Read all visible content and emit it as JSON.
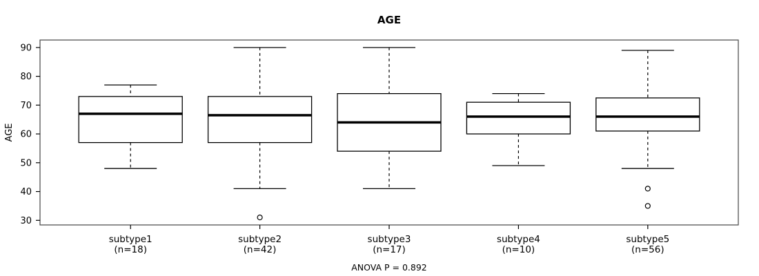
{
  "title": "AGE",
  "y_axis_label": "AGE",
  "footer": "ANOVA P = 0.892",
  "chart_data": {
    "type": "boxplot",
    "title": "AGE",
    "xlabel": "",
    "ylabel": "AGE",
    "annotation": "ANOVA P = 0.892",
    "ylim": [
      28.4,
      92.6
    ],
    "y_ticks": [
      30,
      40,
      50,
      60,
      70,
      80,
      90
    ],
    "grid": false,
    "legend": "none",
    "groups": [
      {
        "label": "subtype1",
        "sublabel": "(n=18)",
        "n": 18,
        "whisker_low": 48,
        "q1": 57,
        "median": 67,
        "q3": 73,
        "whisker_high": 77,
        "outliers": []
      },
      {
        "label": "subtype2",
        "sublabel": "(n=42)",
        "n": 42,
        "whisker_low": 41,
        "q1": 57,
        "median": 66.5,
        "q3": 73,
        "whisker_high": 90,
        "outliers": [
          31
        ]
      },
      {
        "label": "subtype3",
        "sublabel": "(n=17)",
        "n": 17,
        "whisker_low": 41,
        "q1": 54,
        "median": 64,
        "q3": 74,
        "whisker_high": 90,
        "outliers": []
      },
      {
        "label": "subtype4",
        "sublabel": "(n=10)",
        "n": 10,
        "whisker_low": 49,
        "q1": 60,
        "median": 66,
        "q3": 71,
        "whisker_high": 74,
        "outliers": []
      },
      {
        "label": "subtype5",
        "sublabel": "(n=56)",
        "n": 56,
        "whisker_low": 48,
        "q1": 61,
        "median": 66,
        "q3": 72.5,
        "whisker_high": 89,
        "outliers": [
          41,
          35
        ]
      }
    ],
    "colors": {
      "stroke": "#000000",
      "median": "#000000",
      "box_fill": "#ffffff",
      "frame": "#444444",
      "background": "#ffffff"
    }
  }
}
